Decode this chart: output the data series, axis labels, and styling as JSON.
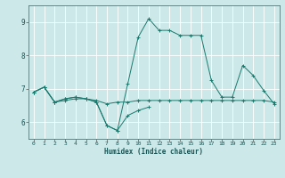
{
  "xlabel": "Humidex (Indice chaleur)",
  "ylabel": "",
  "background_color": "#cce8e8",
  "grid_color": "#ffffff",
  "line_color": "#1a7a6e",
  "xlim": [
    -0.5,
    23.5
  ],
  "ylim": [
    5.5,
    9.5
  ],
  "yticks": [
    6,
    7,
    8,
    9
  ],
  "xticks": [
    0,
    1,
    2,
    3,
    4,
    5,
    6,
    7,
    8,
    9,
    10,
    11,
    12,
    13,
    14,
    15,
    16,
    17,
    18,
    19,
    20,
    21,
    22,
    23
  ],
  "line1_x": [
    0,
    1,
    2,
    3,
    4,
    5,
    6,
    7,
    8,
    9,
    10,
    11,
    12,
    13,
    14,
    15,
    16,
    17,
    18,
    19,
    20,
    21,
    22,
    23
  ],
  "line1_y": [
    6.9,
    7.05,
    6.6,
    6.65,
    6.7,
    6.7,
    6.65,
    6.55,
    6.6,
    6.6,
    6.65,
    6.65,
    6.65,
    6.65,
    6.65,
    6.65,
    6.65,
    6.65,
    6.65,
    6.65,
    6.65,
    6.65,
    6.65,
    6.6
  ],
  "line2_x": [
    0,
    1,
    2,
    3,
    4,
    5,
    6,
    7,
    8,
    9,
    10,
    11
  ],
  "line2_y": [
    6.9,
    7.05,
    6.6,
    6.7,
    6.75,
    6.7,
    6.6,
    5.9,
    5.75,
    6.2,
    6.35,
    6.45
  ],
  "line3_x": [
    0,
    1,
    2,
    3,
    4,
    5,
    6,
    7,
    8,
    9,
    10,
    11,
    12,
    13,
    14,
    15,
    16,
    17,
    18,
    19,
    20,
    21,
    22,
    23
  ],
  "line3_y": [
    6.9,
    7.05,
    6.6,
    6.7,
    6.75,
    6.7,
    6.6,
    5.9,
    5.75,
    7.15,
    8.55,
    9.1,
    8.75,
    8.75,
    8.6,
    8.6,
    8.6,
    7.25,
    6.75,
    6.75,
    7.7,
    7.4,
    6.95,
    6.55
  ]
}
